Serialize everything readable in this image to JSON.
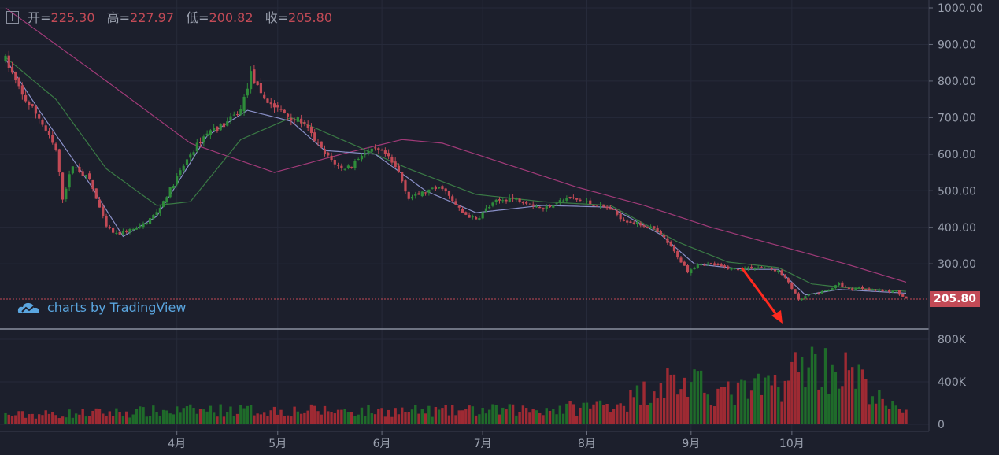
{
  "ohlc_header": {
    "open_label": "开=",
    "open": "225.30",
    "high_label": "高=",
    "high": "227.97",
    "low_label": "低=",
    "low": "200.82",
    "close_label": "收=",
    "close": "205.80"
  },
  "branding": "charts by TradingView",
  "last_price": "205.80",
  "colors": {
    "up": "#2e8b3a",
    "down": "#c24a56",
    "ma5": "#8a90c8",
    "ma10": "#3a7a45",
    "ma30": "#a03a78",
    "background": "#1c1f2c",
    "grid": "#262a3a"
  },
  "chart_data": {
    "type": "candlestick",
    "price_axis": {
      "ticks": [
        "1000.00",
        "900.00",
        "800.00",
        "700.00",
        "600.00",
        "500.00",
        "400.00",
        "300.00"
      ],
      "range": [
        220,
        1000
      ]
    },
    "volume_axis": {
      "ticks": [
        "800K",
        "400K",
        "0"
      ],
      "range": [
        0,
        830000
      ]
    },
    "x_ticks": [
      "4月",
      "5月",
      "6月",
      "7月",
      "8月",
      "9月",
      "10月"
    ],
    "annotation": "red arrow pointing to low near 9月",
    "price_anchors": [
      [
        0,
        860
      ],
      [
        5,
        760
      ],
      [
        10,
        700
      ],
      [
        15,
        610
      ],
      [
        17,
        480
      ],
      [
        20,
        570
      ],
      [
        25,
        530
      ],
      [
        30,
        400
      ],
      [
        33,
        380
      ],
      [
        36,
        390
      ],
      [
        40,
        400
      ],
      [
        45,
        440
      ],
      [
        50,
        520
      ],
      [
        55,
        600
      ],
      [
        60,
        660
      ],
      [
        65,
        680
      ],
      [
        70,
        720
      ],
      [
        73,
        820
      ],
      [
        76,
        760
      ],
      [
        80,
        730
      ],
      [
        85,
        700
      ],
      [
        88,
        690
      ],
      [
        92,
        640
      ],
      [
        95,
        600
      ],
      [
        100,
        560
      ],
      [
        103,
        570
      ],
      [
        106,
        600
      ],
      [
        110,
        610
      ],
      [
        113,
        600
      ],
      [
        117,
        550
      ],
      [
        120,
        480
      ],
      [
        123,
        490
      ],
      [
        126,
        500
      ],
      [
        130,
        510
      ],
      [
        133,
        470
      ],
      [
        136,
        440
      ],
      [
        140,
        420
      ],
      [
        143,
        450
      ],
      [
        146,
        470
      ],
      [
        150,
        480
      ],
      [
        155,
        470
      ],
      [
        160,
        450
      ],
      [
        164,
        470
      ],
      [
        168,
        480
      ],
      [
        172,
        470
      ],
      [
        176,
        460
      ],
      [
        180,
        450
      ],
      [
        184,
        420
      ],
      [
        188,
        410
      ],
      [
        192,
        400
      ],
      [
        196,
        370
      ],
      [
        200,
        320
      ],
      [
        203,
        280
      ],
      [
        206,
        300
      ],
      [
        210,
        300
      ],
      [
        214,
        290
      ],
      [
        218,
        285
      ],
      [
        222,
        290
      ],
      [
        226,
        290
      ],
      [
        230,
        280
      ],
      [
        233,
        250
      ],
      [
        236,
        200
      ],
      [
        239,
        215
      ],
      [
        242,
        220
      ],
      [
        245,
        230
      ],
      [
        248,
        245
      ],
      [
        251,
        230
      ],
      [
        254,
        235
      ],
      [
        258,
        230
      ],
      [
        262,
        225
      ],
      [
        265,
        225
      ],
      [
        268,
        205.8
      ]
    ],
    "volume_profile": [
      [
        0,
        90000
      ],
      [
        60,
        140000
      ],
      [
        130,
        130000
      ],
      [
        150,
        140000
      ],
      [
        170,
        160000
      ],
      [
        185,
        230000
      ],
      [
        196,
        430000
      ],
      [
        205,
        380000
      ],
      [
        215,
        300000
      ],
      [
        225,
        350000
      ],
      [
        232,
        430000
      ],
      [
        238,
        620000
      ],
      [
        244,
        560000
      ],
      [
        250,
        520000
      ],
      [
        256,
        380000
      ],
      [
        262,
        170000
      ],
      [
        268,
        150000
      ]
    ],
    "ma_lines": {
      "ma5": [
        [
          0,
          860
        ],
        [
          10,
          720
        ],
        [
          25,
          520
        ],
        [
          35,
          375
        ],
        [
          45,
          430
        ],
        [
          60,
          650
        ],
        [
          72,
          720
        ],
        [
          85,
          690
        ],
        [
          95,
          610
        ],
        [
          110,
          600
        ],
        [
          125,
          500
        ],
        [
          140,
          440
        ],
        [
          160,
          460
        ],
        [
          180,
          455
        ],
        [
          195,
          380
        ],
        [
          205,
          300
        ],
        [
          220,
          285
        ],
        [
          230,
          285
        ],
        [
          238,
          215
        ],
        [
          248,
          230
        ],
        [
          268,
          220
        ]
      ],
      "ma10": [
        [
          0,
          865
        ],
        [
          15,
          750
        ],
        [
          30,
          560
        ],
        [
          45,
          460
        ],
        [
          55,
          470
        ],
        [
          70,
          640
        ],
        [
          85,
          700
        ],
        [
          100,
          640
        ],
        [
          120,
          560
        ],
        [
          140,
          490
        ],
        [
          160,
          470
        ],
        [
          180,
          460
        ],
        [
          200,
          360
        ],
        [
          215,
          305
        ],
        [
          230,
          290
        ],
        [
          240,
          245
        ],
        [
          250,
          235
        ],
        [
          268,
          225
        ]
      ],
      "ma30": [
        [
          0,
          1000
        ],
        [
          30,
          800
        ],
        [
          55,
          630
        ],
        [
          80,
          550
        ],
        [
          100,
          600
        ],
        [
          118,
          640
        ],
        [
          130,
          630
        ],
        [
          150,
          570
        ],
        [
          170,
          510
        ],
        [
          190,
          460
        ],
        [
          210,
          400
        ],
        [
          230,
          350
        ],
        [
          250,
          300
        ],
        [
          268,
          250
        ]
      ]
    }
  }
}
